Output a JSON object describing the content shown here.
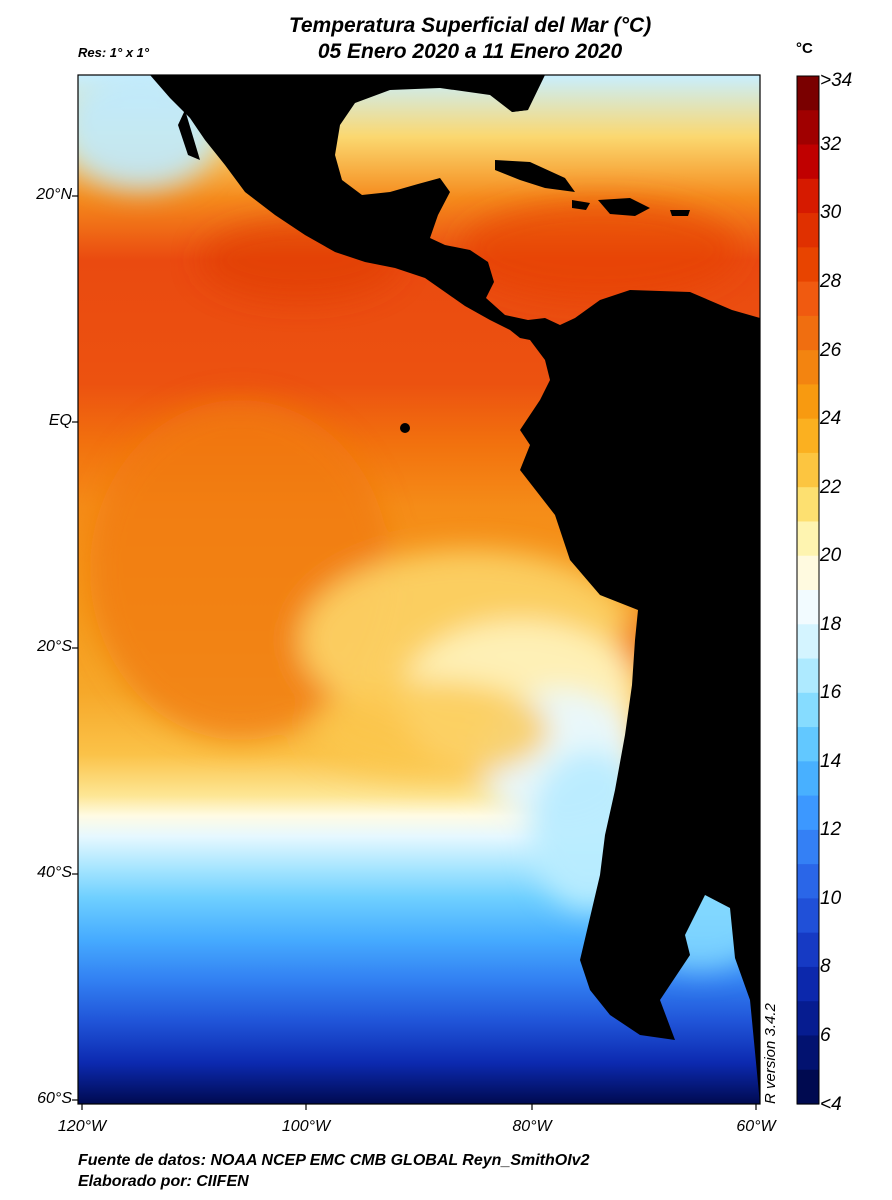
{
  "title_line1": "Temperatura Superficial del Mar (°C)",
  "title_line2": "05 Enero 2020 a 11 Enero 2020",
  "resolution": "Res: 1° x 1°",
  "colorbar": {
    "unit": "°C",
    "top_label": ">34",
    "bottom_label": "<4",
    "ticks": [
      "32",
      "30",
      "28",
      "26",
      "24",
      "22",
      "20",
      "18",
      "16",
      "14",
      "12",
      "10",
      "8",
      "6"
    ],
    "colors": [
      "#7a0000",
      "#a00000",
      "#c00000",
      "#d61a00",
      "#e03000",
      "#e84400",
      "#f05a10",
      "#f06e10",
      "#f38410",
      "#f89a10",
      "#fbb020",
      "#fcc540",
      "#fde070",
      "#fef4b0",
      "#fffae0",
      "#f2fbff",
      "#d4f4ff",
      "#aeeaff",
      "#86dcff",
      "#62c8ff",
      "#48b0ff",
      "#3c98ff",
      "#3480f5",
      "#2a66e8",
      "#2050d8",
      "#163ac4",
      "#0c28ac",
      "#061c90",
      "#021270",
      "#000a50"
    ]
  },
  "lat_labels": [
    "20°N",
    "EQ",
    "20°S",
    "40°S",
    "60°S"
  ],
  "lon_labels": [
    "120°W",
    "100°W",
    "80°W",
    "60°W"
  ],
  "credit_source": "Fuente de datos: NOAA NCEP EMC CMB GLOBAL Reyn_SmithOIv2",
  "credit_author": "Elaborado por: CIIFEN",
  "r_version": "R version 3.4.2"
}
